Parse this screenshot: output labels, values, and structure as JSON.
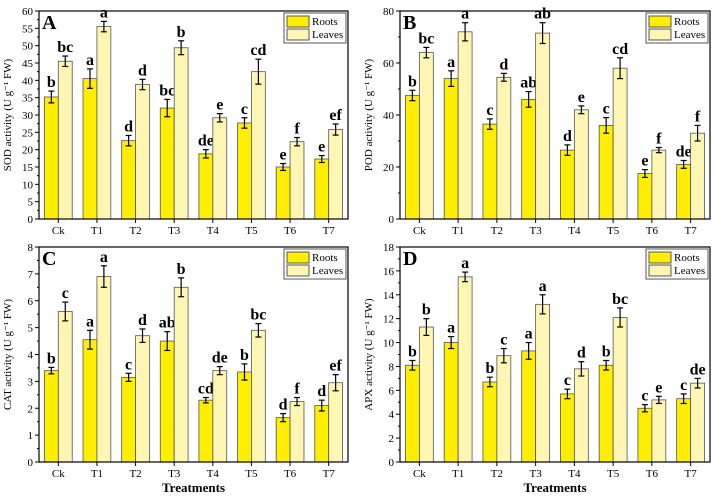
{
  "chart_data": [
    {
      "type": "bar",
      "panel_label": "A",
      "categories": [
        "Ck",
        "T1",
        "T2",
        "T3",
        "T4",
        "T5",
        "T6",
        "T7"
      ],
      "ylabel": "SOD activity (U g⁻¹ FW)",
      "xlabel": "",
      "ylim": [
        0,
        60
      ],
      "ytick_step": 5,
      "legend": [
        "Roots",
        "Leaves"
      ],
      "legend_position": "top-right",
      "series": [
        {
          "name": "Roots",
          "values": [
            35.2,
            40.5,
            22.6,
            32.0,
            18.8,
            27.7,
            15.0,
            17.3
          ],
          "errors": [
            1.7,
            2.8,
            1.5,
            2.5,
            1.2,
            1.5,
            1.0,
            1.0
          ],
          "letters": [
            "b",
            "a",
            "d",
            "bc",
            "de",
            "c",
            "e",
            "e"
          ]
        },
        {
          "name": "Leaves",
          "values": [
            45.5,
            55.5,
            38.8,
            49.4,
            29.2,
            42.5,
            22.3,
            25.8
          ],
          "errors": [
            1.5,
            1.5,
            1.5,
            2.0,
            1.2,
            3.6,
            1.2,
            1.6
          ],
          "letters": [
            "bc",
            "a",
            "d",
            "b",
            "e",
            "cd",
            "f",
            "ef"
          ]
        }
      ]
    },
    {
      "type": "bar",
      "panel_label": "B",
      "categories": [
        "Ck",
        "T1",
        "T2",
        "T3",
        "T4",
        "T5",
        "T6",
        "T7"
      ],
      "ylabel": "POD activity (U g⁻¹ FW)",
      "xlabel": "",
      "ylim": [
        0,
        80
      ],
      "ytick_step": 20,
      "legend": [
        "Roots",
        "Leaves"
      ],
      "legend_position": "top-right",
      "series": [
        {
          "name": "Roots",
          "values": [
            47.5,
            54.0,
            36.5,
            46.0,
            26.5,
            36.0,
            17.5,
            21.0
          ],
          "errors": [
            2.0,
            3.0,
            2.0,
            3.0,
            2.0,
            3.0,
            1.5,
            1.5
          ],
          "letters": [
            "b",
            "a",
            "c",
            "ab",
            "d",
            "c",
            "e",
            "de"
          ]
        },
        {
          "name": "Leaves",
          "values": [
            64.0,
            72.0,
            54.5,
            71.5,
            42.0,
            58.0,
            26.5,
            33.0
          ],
          "errors": [
            2.0,
            3.5,
            1.5,
            4.0,
            1.5,
            4.0,
            1.0,
            3.0
          ],
          "letters": [
            "bc",
            "a",
            "d",
            "ab",
            "e",
            "cd",
            "f",
            "f"
          ]
        }
      ]
    },
    {
      "type": "bar",
      "panel_label": "C",
      "categories": [
        "Ck",
        "T1",
        "T2",
        "T3",
        "T4",
        "T5",
        "T6",
        "T7"
      ],
      "ylabel": "CAT activity (U g⁻¹ FW)",
      "xlabel": "Treatments",
      "ylim": [
        0,
        8
      ],
      "ytick_step": 1,
      "legend": [
        "Roots",
        "Leaves"
      ],
      "legend_position": "top-right",
      "series": [
        {
          "name": "Roots",
          "values": [
            3.4,
            4.55,
            3.15,
            4.5,
            2.3,
            3.35,
            1.65,
            2.1
          ],
          "errors": [
            0.12,
            0.35,
            0.15,
            0.35,
            0.1,
            0.3,
            0.15,
            0.2
          ],
          "letters": [
            "b",
            "a",
            "c",
            "ab",
            "cd",
            "b",
            "d",
            "d"
          ]
        },
        {
          "name": "Leaves",
          "values": [
            5.6,
            6.9,
            4.7,
            6.5,
            3.4,
            4.9,
            2.25,
            2.95
          ],
          "errors": [
            0.35,
            0.4,
            0.25,
            0.35,
            0.15,
            0.25,
            0.15,
            0.3
          ],
          "letters": [
            "c",
            "a",
            "d",
            "b",
            "de",
            "bc",
            "f",
            "ef"
          ]
        }
      ]
    },
    {
      "type": "bar",
      "panel_label": "D",
      "categories": [
        "Ck",
        "T1",
        "T2",
        "T3",
        "T4",
        "T5",
        "T6",
        "T7"
      ],
      "ylabel": "APX activity (U g⁻¹ FW)",
      "xlabel": "Treatments",
      "ylim": [
        0,
        18
      ],
      "ytick_step": 2,
      "legend": [
        "Roots",
        "Leaves"
      ],
      "legend_position": "top-right",
      "series": [
        {
          "name": "Roots",
          "values": [
            8.1,
            10.0,
            6.7,
            9.3,
            5.7,
            8.1,
            4.5,
            5.3
          ],
          "errors": [
            0.4,
            0.5,
            0.4,
            0.7,
            0.4,
            0.4,
            0.3,
            0.4
          ],
          "letters": [
            "b",
            "a",
            "b",
            "a",
            "c",
            "b",
            "c",
            "c"
          ]
        },
        {
          "name": "Leaves",
          "values": [
            11.3,
            15.5,
            8.9,
            13.2,
            7.8,
            12.1,
            5.2,
            6.6
          ],
          "errors": [
            0.7,
            0.4,
            0.6,
            0.8,
            0.6,
            0.8,
            0.3,
            0.4
          ],
          "letters": [
            "b",
            "a",
            "c",
            "a",
            "d",
            "bc",
            "e",
            "de"
          ]
        }
      ]
    }
  ],
  "colors": {
    "roots": "#FFEE00",
    "leaves": "#FFF6B3",
    "axis": "#000000"
  }
}
